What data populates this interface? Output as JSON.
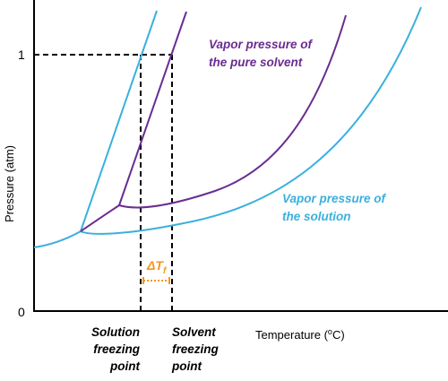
{
  "axes": {
    "y_label": "Pressure (atm)",
    "x_label_text": "Temperature (",
    "x_label_sup": "o",
    "x_label_unit": "C)",
    "y_tick_top": "1",
    "y_tick_zero": "0"
  },
  "labels": {
    "pure_solvent_line1": "Vapor pressure of",
    "pure_solvent_line2": "the pure solvent",
    "solution_line1": "Vapor pressure of",
    "solution_line2": "the solution",
    "delta_symbol": "ΔT",
    "delta_subscript": "f",
    "solution_fp_line1": "Solution",
    "solution_fp_line2": "freezing",
    "solution_fp_line3": "point",
    "solvent_fp_line1": "Solvent",
    "solvent_fp_line2": "freezing",
    "solvent_fp_line3": "point"
  },
  "colors": {
    "pure_solvent": "#6a2c91",
    "solution": "#3ab0dd",
    "delta": "#f7941d",
    "axis": "#000000"
  }
}
